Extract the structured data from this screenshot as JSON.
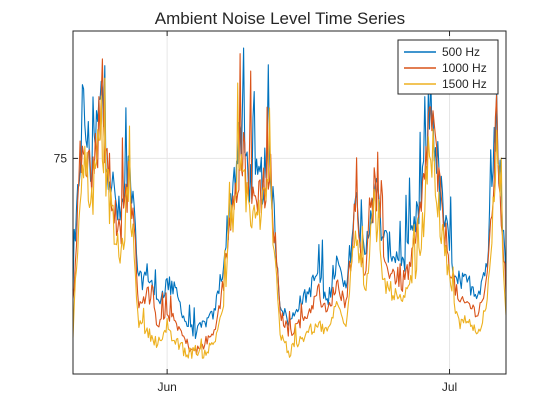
{
  "chart_data": {
    "type": "line",
    "title": "Ambient Noise Level Time Series",
    "xlabel": "",
    "ylabel": "",
    "x_start": "2023-05-22",
    "x_end": "2023-07-07",
    "x_ticks": [
      {
        "date": "2023-06-01",
        "label": "Jun"
      },
      {
        "date": "2023-07-01",
        "label": "Jul"
      }
    ],
    "ylim": [
      53,
      88
    ],
    "y_ticks": [
      75
    ],
    "grid": true,
    "legend_position": "top-right",
    "x": [
      "2023-05-22",
      "2023-05-23",
      "2023-05-24",
      "2023-05-25",
      "2023-05-26",
      "2023-05-27",
      "2023-05-28",
      "2023-05-29",
      "2023-05-30",
      "2023-05-31",
      "2023-06-01",
      "2023-06-02",
      "2023-06-03",
      "2023-06-04",
      "2023-06-05",
      "2023-06-06",
      "2023-06-07",
      "2023-06-08",
      "2023-06-09",
      "2023-06-10",
      "2023-06-11",
      "2023-06-12",
      "2023-06-13",
      "2023-06-14",
      "2023-06-15",
      "2023-06-16",
      "2023-06-17",
      "2023-06-18",
      "2023-06-19",
      "2023-06-20",
      "2023-06-21",
      "2023-06-22",
      "2023-06-23",
      "2023-06-24",
      "2023-06-25",
      "2023-06-26",
      "2023-06-27",
      "2023-06-28",
      "2023-06-29",
      "2023-06-30",
      "2023-07-01",
      "2023-07-02",
      "2023-07-03",
      "2023-07-04",
      "2023-07-05",
      "2023-07-06",
      "2023-07-07"
    ],
    "series": [
      {
        "name": "500 Hz",
        "color": "#0072BD",
        "values": [
          61,
          79,
          73,
          80,
          72,
          68,
          74,
          62,
          63,
          60,
          62,
          61,
          58,
          57,
          58,
          59,
          64,
          72,
          76,
          71,
          72,
          73,
          60,
          58,
          60,
          61,
          63,
          60,
          64,
          61,
          70,
          64,
          72,
          66,
          65,
          64,
          66,
          70,
          80,
          71,
          65,
          62,
          62,
          61,
          64,
          78,
          63
        ]
      },
      {
        "name": "1000 Hz",
        "color": "#D95319",
        "values": [
          60,
          78,
          72,
          79,
          71,
          66,
          73,
          60,
          61,
          58,
          59,
          58,
          56,
          55,
          56,
          57,
          62,
          71,
          75,
          70,
          71,
          72,
          59,
          57,
          58,
          59,
          61,
          59,
          62,
          60,
          69,
          63,
          71,
          64,
          63,
          62,
          64,
          69,
          79,
          70,
          64,
          60,
          60,
          59,
          62,
          77,
          61
        ]
      },
      {
        "name": "1500 Hz",
        "color": "#EDB120",
        "values": [
          57,
          75,
          70,
          77,
          69,
          64,
          71,
          58,
          57,
          56,
          57,
          56,
          55,
          55,
          55,
          56,
          60,
          69,
          73,
          68,
          69,
          71,
          57,
          55,
          56,
          57,
          58,
          57,
          60,
          58,
          68,
          61,
          69,
          62,
          61,
          60,
          62,
          66,
          76,
          68,
          62,
          58,
          58,
          57,
          60,
          75,
          59
        ]
      }
    ]
  }
}
